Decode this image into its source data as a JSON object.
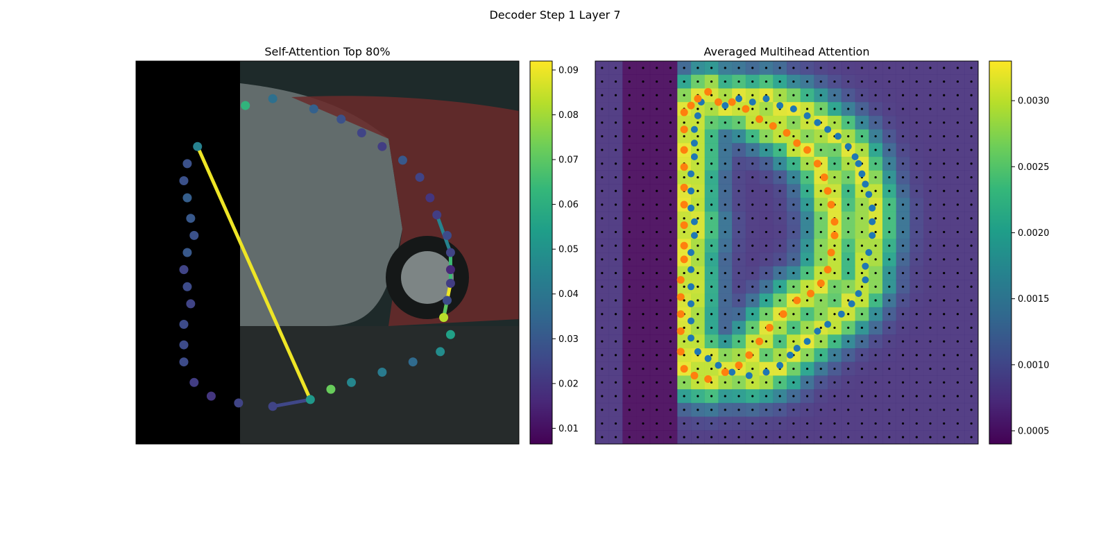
{
  "figure": {
    "title": "Decoder Step 1 Layer 7"
  },
  "colors": {
    "viridis": [
      "#440154",
      "#482878",
      "#3e4989",
      "#31688e",
      "#26828e",
      "#1f9e89",
      "#35b779",
      "#6ece58",
      "#b5de2b",
      "#fde725"
    ],
    "gt_points": "#1f77b4",
    "pred_points": "#ff7f0e",
    "grid_dots": "#000000",
    "black_padding": "#000000"
  },
  "chart_data": [
    {
      "type": "scatter",
      "title": "Self-Attention Top 80%",
      "xlabel": "",
      "ylabel": "",
      "colorbar": {
        "ticks": [
          0.01,
          0.02,
          0.03,
          0.04,
          0.05,
          0.06,
          0.07,
          0.08,
          0.09
        ],
        "range": [
          0.0065,
          0.092
        ],
        "colormap": "viridis"
      },
      "points": [
        {
          "x": 32,
          "y": 13,
          "v": 0.062
        },
        {
          "x": 40,
          "y": 11,
          "v": 0.038
        },
        {
          "x": 52,
          "y": 14,
          "v": 0.033
        },
        {
          "x": 60,
          "y": 17,
          "v": 0.028
        },
        {
          "x": 66,
          "y": 21,
          "v": 0.024
        },
        {
          "x": 72,
          "y": 25,
          "v": 0.022
        },
        {
          "x": 78,
          "y": 29,
          "v": 0.03
        },
        {
          "x": 83,
          "y": 34,
          "v": 0.024
        },
        {
          "x": 86,
          "y": 40,
          "v": 0.02
        },
        {
          "x": 88,
          "y": 45,
          "v": 0.022
        },
        {
          "x": 91,
          "y": 51,
          "v": 0.026
        },
        {
          "x": 92,
          "y": 56,
          "v": 0.024
        },
        {
          "x": 92,
          "y": 61,
          "v": 0.016
        },
        {
          "x": 92,
          "y": 65,
          "v": 0.022
        },
        {
          "x": 91,
          "y": 70,
          "v": 0.026
        },
        {
          "x": 90,
          "y": 75,
          "v": 0.083
        },
        {
          "x": 92,
          "y": 80,
          "v": 0.055
        },
        {
          "x": 89,
          "y": 85,
          "v": 0.048
        },
        {
          "x": 81,
          "y": 88,
          "v": 0.036
        },
        {
          "x": 72,
          "y": 91,
          "v": 0.042
        },
        {
          "x": 63,
          "y": 94,
          "v": 0.046
        },
        {
          "x": 57,
          "y": 96,
          "v": 0.072
        },
        {
          "x": 51,
          "y": 99,
          "v": 0.052
        },
        {
          "x": 40,
          "y": 101,
          "v": 0.024
        },
        {
          "x": 30,
          "y": 100,
          "v": 0.024
        },
        {
          "x": 22,
          "y": 98,
          "v": 0.02
        },
        {
          "x": 17,
          "y": 94,
          "v": 0.022
        },
        {
          "x": 14,
          "y": 88,
          "v": 0.026
        },
        {
          "x": 14,
          "y": 83,
          "v": 0.026
        },
        {
          "x": 14,
          "y": 77,
          "v": 0.026
        },
        {
          "x": 16,
          "y": 71,
          "v": 0.024
        },
        {
          "x": 15,
          "y": 66,
          "v": 0.026
        },
        {
          "x": 14,
          "y": 61,
          "v": 0.024
        },
        {
          "x": 15,
          "y": 56,
          "v": 0.03
        },
        {
          "x": 17,
          "y": 51,
          "v": 0.028
        },
        {
          "x": 16,
          "y": 46,
          "v": 0.03
        },
        {
          "x": 15,
          "y": 40,
          "v": 0.032
        },
        {
          "x": 14,
          "y": 35,
          "v": 0.028
        },
        {
          "x": 15,
          "y": 30,
          "v": 0.028
        },
        {
          "x": 18,
          "y": 25,
          "v": 0.044
        }
      ],
      "segments": [
        {
          "from": [
            18,
            25
          ],
          "to": [
            51,
            99
          ],
          "v": 0.09
        },
        {
          "from": [
            90,
            75
          ],
          "to": [
            92,
            65
          ],
          "v": 0.09
        },
        {
          "from": [
            92,
            65
          ],
          "to": [
            92,
            56
          ],
          "v": 0.065
        },
        {
          "from": [
            92,
            56
          ],
          "to": [
            88,
            45
          ],
          "v": 0.045
        },
        {
          "from": [
            91,
            70
          ],
          "to": [
            90,
            75
          ],
          "v": 0.07
        },
        {
          "from": [
            40,
            101
          ],
          "to": [
            51,
            99
          ],
          "v": 0.025
        }
      ]
    },
    {
      "type": "heatmap",
      "title": "Averaged Multihead Attention",
      "xlabel": "",
      "ylabel": "",
      "colorbar": {
        "ticks": [
          0.0005,
          0.001,
          0.0015,
          0.002,
          0.0025,
          0.003
        ],
        "range": [
          0.0004,
          0.0033
        ],
        "colormap": "viridis"
      },
      "grid_size": 28,
      "gt_points": [
        [
          38,
          13
        ],
        [
          42,
          11
        ],
        [
          46,
          12
        ],
        [
          50,
          11
        ],
        [
          54,
          13
        ],
        [
          58,
          14
        ],
        [
          62,
          16
        ],
        [
          65,
          18
        ],
        [
          68,
          20
        ],
        [
          71,
          22
        ],
        [
          74,
          25
        ],
        [
          76,
          28
        ],
        [
          77,
          30
        ],
        [
          78,
          33
        ],
        [
          79,
          36
        ],
        [
          80,
          39
        ],
        [
          81,
          43
        ],
        [
          81,
          47
        ],
        [
          81,
          51
        ],
        [
          80,
          56
        ],
        [
          79,
          60
        ],
        [
          79,
          64
        ],
        [
          77,
          68
        ],
        [
          75,
          71
        ],
        [
          72,
          74
        ],
        [
          68,
          77
        ],
        [
          65,
          79
        ],
        [
          62,
          82
        ],
        [
          59,
          84
        ],
        [
          57,
          86
        ],
        [
          54,
          89
        ],
        [
          50,
          91
        ],
        [
          45,
          92
        ],
        [
          40,
          91
        ],
        [
          36,
          89
        ],
        [
          33,
          87
        ],
        [
          30,
          85
        ],
        [
          28,
          81
        ],
        [
          28,
          76
        ],
        [
          28,
          71
        ],
        [
          28,
          66
        ],
        [
          28,
          61
        ],
        [
          28,
          56
        ],
        [
          29,
          51
        ],
        [
          29,
          47
        ],
        [
          28,
          43
        ],
        [
          28,
          38
        ],
        [
          28,
          33
        ],
        [
          29,
          28
        ],
        [
          29,
          24
        ],
        [
          29,
          20
        ],
        [
          30,
          16
        ],
        [
          31,
          12
        ]
      ],
      "pred_points": [
        [
          30,
          11
        ],
        [
          28,
          13
        ],
        [
          33,
          9
        ],
        [
          36,
          12
        ],
        [
          40,
          12
        ],
        [
          44,
          14
        ],
        [
          48,
          17
        ],
        [
          52,
          19
        ],
        [
          56,
          21
        ],
        [
          59,
          24
        ],
        [
          62,
          26
        ],
        [
          65,
          30
        ],
        [
          67,
          34
        ],
        [
          68,
          38
        ],
        [
          69,
          42
        ],
        [
          70,
          47
        ],
        [
          70,
          51
        ],
        [
          69,
          56
        ],
        [
          68,
          61
        ],
        [
          66,
          65
        ],
        [
          63,
          68
        ],
        [
          59,
          70
        ],
        [
          55,
          74
        ],
        [
          51,
          78
        ],
        [
          48,
          82
        ],
        [
          45,
          86
        ],
        [
          42,
          89
        ],
        [
          38,
          91
        ],
        [
          33,
          93
        ],
        [
          29,
          92
        ],
        [
          26,
          90
        ],
        [
          25,
          85
        ],
        [
          25,
          79
        ],
        [
          25,
          74
        ],
        [
          25,
          69
        ],
        [
          25,
          64
        ],
        [
          26,
          58
        ],
        [
          26,
          54
        ],
        [
          26,
          48
        ],
        [
          26,
          42
        ],
        [
          26,
          37
        ],
        [
          26,
          31
        ],
        [
          26,
          26
        ],
        [
          26,
          20
        ],
        [
          26,
          15
        ]
      ]
    }
  ]
}
